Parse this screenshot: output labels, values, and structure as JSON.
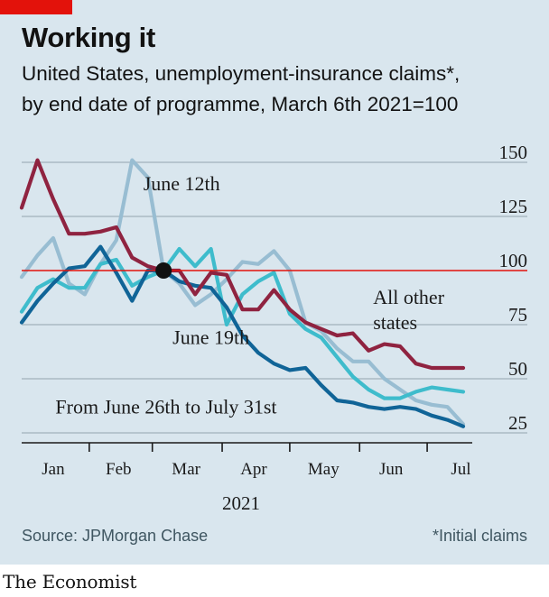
{
  "header": {
    "title": "Working it",
    "subtitle_line1": "United States, unemployment-insurance claims*,",
    "subtitle_line2": "by end date of programme, March 6th 2021=100"
  },
  "footer": {
    "source": "Source: JPMorgan Chase",
    "note": "*Initial claims",
    "brand": "The Economist"
  },
  "colors": {
    "background": "#d9e6ee",
    "grid": "#b6c5ce",
    "axis": "#1a1a1a",
    "reference": "#e3120b",
    "june12": "#98bdd2",
    "june19": "#3ebccc",
    "june26_jul31": "#106497",
    "all_other": "#8f2340"
  },
  "chart_data": {
    "type": "line",
    "x_unit": "week ending (2021)",
    "xlim": [
      "2021-01-02",
      "2021-07-17"
    ],
    "ylim": [
      25,
      150
    ],
    "yticks": [
      25,
      50,
      75,
      100,
      125,
      150
    ],
    "reference_line": 100,
    "grid": true,
    "xaxis_label": "2021",
    "x_tick_labels": [
      {
        "label": "Jan",
        "mid": "2021-01-16"
      },
      {
        "label": "Feb",
        "mid": "2021-02-14"
      },
      {
        "label": "Mar",
        "mid": "2021-03-16"
      },
      {
        "label": "Apr",
        "mid": "2021-04-15"
      },
      {
        "label": "May",
        "mid": "2021-05-16"
      },
      {
        "label": "Jun",
        "mid": "2021-06-15"
      },
      {
        "label": "Jul",
        "mid": "2021-07-16"
      }
    ],
    "x_month_boundaries": [
      "2021-01-01",
      "2021-02-01",
      "2021-03-01",
      "2021-04-01",
      "2021-05-01",
      "2021-06-01",
      "2021-07-01"
    ],
    "marker": {
      "x": "2021-03-06",
      "y": 100
    },
    "x": [
      "2021-01-02",
      "2021-01-09",
      "2021-01-16",
      "2021-01-23",
      "2021-01-30",
      "2021-02-06",
      "2021-02-13",
      "2021-02-20",
      "2021-02-27",
      "2021-03-06",
      "2021-03-13",
      "2021-03-20",
      "2021-03-27",
      "2021-04-03",
      "2021-04-10",
      "2021-04-17",
      "2021-04-24",
      "2021-05-01",
      "2021-05-08",
      "2021-05-15",
      "2021-05-22",
      "2021-05-29",
      "2021-06-05",
      "2021-06-12",
      "2021-06-19",
      "2021-06-26",
      "2021-07-03",
      "2021-07-10",
      "2021-07-17"
    ],
    "series": [
      {
        "name": "June 12th",
        "color_key": "june12",
        "label_at": {
          "x": "2021-02-25",
          "y": 137
        },
        "values": [
          97,
          107,
          115,
          94,
          89,
          103,
          114,
          151,
          143,
          100,
          94,
          84,
          89,
          96,
          104,
          103,
          109,
          100,
          76,
          72,
          64,
          58,
          58,
          50,
          45,
          40,
          38,
          37,
          29
        ]
      },
      {
        "name": "June 19th",
        "color_key": "june19",
        "label_at": {
          "x": "2021-03-10",
          "y": 66
        },
        "values": [
          81,
          92,
          96,
          92,
          92,
          103,
          105,
          93,
          97,
          100,
          110,
          102,
          110,
          75,
          89,
          95,
          99,
          80,
          73,
          69,
          60,
          51,
          45,
          41,
          41,
          44,
          46,
          45,
          44
        ]
      },
      {
        "name": "From June 26th to July 31st",
        "color_key": "june26_jul31",
        "label_at": {
          "x": "2021-01-17",
          "y": 34
        },
        "values": [
          76,
          86,
          94,
          101,
          102,
          111,
          99,
          86,
          100,
          100,
          95,
          93,
          92,
          83,
          70,
          62,
          57,
          54,
          55,
          47,
          40,
          39,
          37,
          36,
          37,
          36,
          33,
          31,
          28
        ]
      },
      {
        "name": "All other states",
        "color_key": "all_other",
        "label_at": {
          "x": "2021-06-07",
          "y": 78
        },
        "values": [
          129,
          151,
          133,
          117,
          117,
          118,
          120,
          106,
          102,
          100,
          100,
          89,
          99,
          98,
          82,
          82,
          91,
          82,
          76,
          73,
          70,
          71,
          63,
          66,
          65,
          57,
          55,
          55,
          55
        ]
      }
    ]
  }
}
